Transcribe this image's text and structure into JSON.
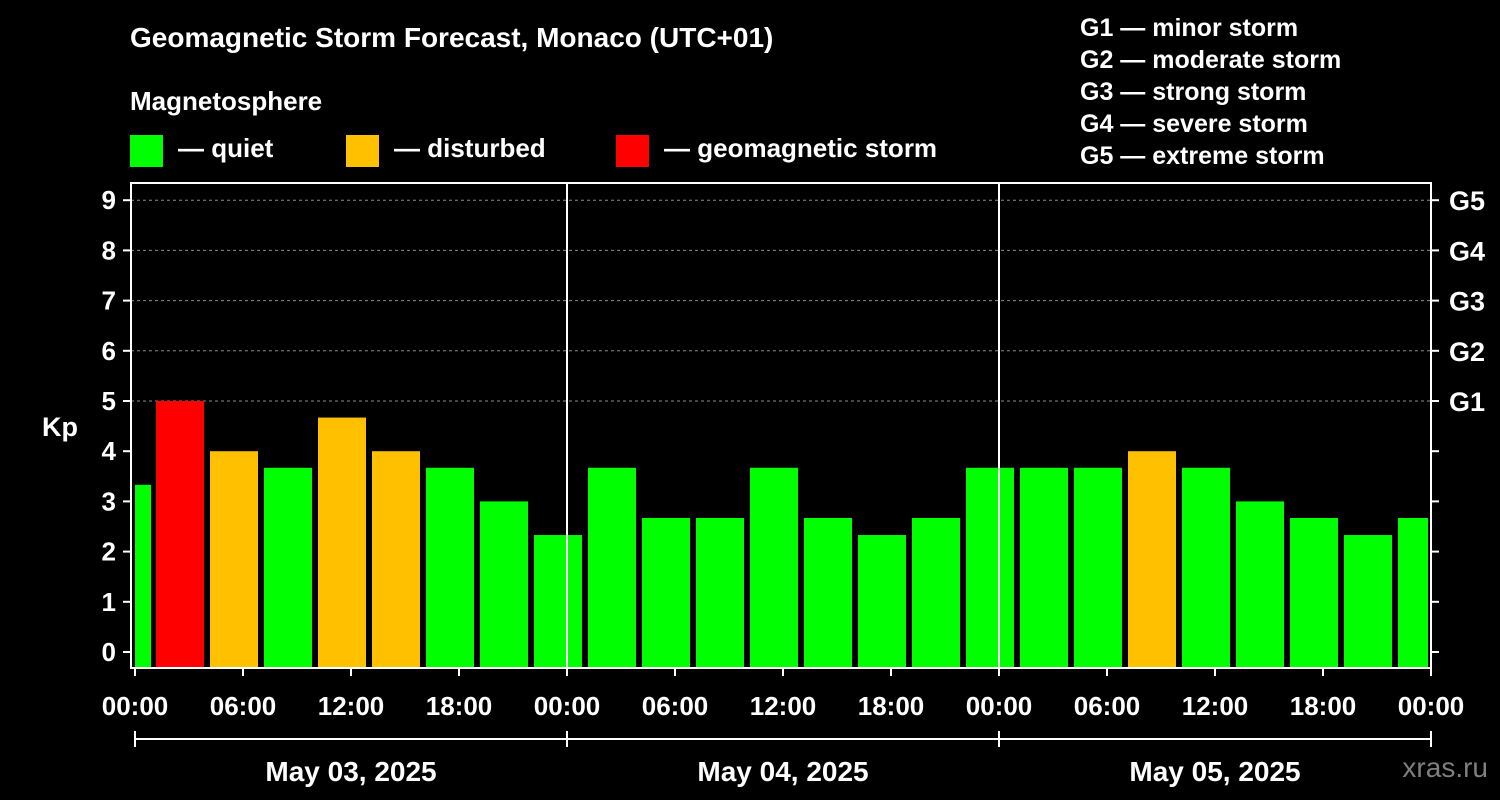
{
  "chart_data": {
    "type": "bar",
    "title": "Geomagnetic Storm Forecast, Monaco (UTC+01)",
    "subtitle": "Magnetosphere",
    "ylabel": "Kp",
    "ylim": [
      0,
      9
    ],
    "y_ticks": [
      "0",
      "1",
      "2",
      "3",
      "4",
      "5",
      "6",
      "7",
      "8",
      "9"
    ],
    "right_ticks": [
      {
        "kp": 5,
        "label": "G1"
      },
      {
        "kp": 6,
        "label": "G2"
      },
      {
        "kp": 7,
        "label": "G3"
      },
      {
        "kp": 8,
        "label": "G4"
      },
      {
        "kp": 9,
        "label": "G5"
      }
    ],
    "x_tick_labels": [
      "00:00",
      "06:00",
      "12:00",
      "18:00",
      "00:00",
      "06:00",
      "12:00",
      "18:00",
      "00:00",
      "06:00",
      "12:00",
      "18:00",
      "00:00"
    ],
    "days": [
      "May 03, 2025",
      "May 04, 2025",
      "May 05, 2025"
    ],
    "status_legend": [
      {
        "label": "— quiet",
        "color": "#00ff00"
      },
      {
        "label": "— disturbed",
        "color": "#ffc000"
      },
      {
        "label": "— geomagnetic storm",
        "color": "#ff0000"
      }
    ],
    "storm_legend": [
      "G1 — minor storm",
      "G2 — moderate storm",
      "G3 — strong storm",
      "G4 — severe storm",
      "G5 — extreme storm"
    ],
    "series": [
      {
        "name": "Kp",
        "values": [
          3.33,
          5.0,
          4.0,
          3.67,
          4.67,
          4.0,
          3.67,
          3.0,
          2.33,
          3.67,
          2.67,
          2.67,
          3.67,
          2.67,
          2.33,
          2.67,
          3.67,
          3.67,
          3.67,
          4.0,
          3.67,
          3.0,
          2.67,
          2.33,
          2.67
        ],
        "status": [
          "quiet",
          "storm",
          "disturbed",
          "quiet",
          "disturbed",
          "disturbed",
          "quiet",
          "quiet",
          "quiet",
          "quiet",
          "quiet",
          "quiet",
          "quiet",
          "quiet",
          "quiet",
          "quiet",
          "quiet",
          "quiet",
          "quiet",
          "disturbed",
          "quiet",
          "quiet",
          "quiet",
          "quiet",
          "quiet"
        ]
      }
    ],
    "colors": {
      "quiet": "#00ff00",
      "disturbed": "#ffc000",
      "storm": "#ff0000"
    }
  },
  "watermark": "xras.ru"
}
